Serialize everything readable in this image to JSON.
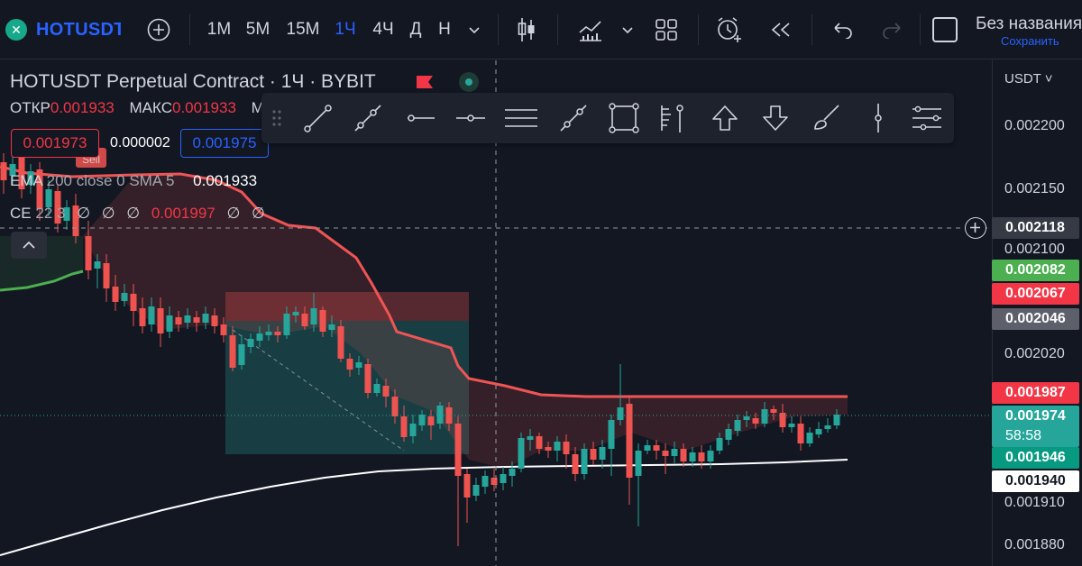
{
  "toolbar": {
    "symbol": "HOTUSDT",
    "intervals": [
      "1M",
      "5M",
      "15M",
      "1Ч",
      "4Ч",
      "Д",
      "Н"
    ],
    "active_interval": "1Ч",
    "layout_title": "Без названия",
    "save_label": "Сохранить"
  },
  "legend": {
    "title": "HOTUSDT Perpetual Contract · 1Ч · BYBIT",
    "open_label": "ОТКР",
    "open_value": "0.001933",
    "high_label": "МАКС",
    "high_value": "0.001933",
    "high_more": "М",
    "sell_price": "0.001973",
    "spread": "0.000002",
    "buy_price": "0.001975",
    "sell_tag": "Sell"
  },
  "indicators": {
    "ema": {
      "name": "EMA",
      "params": "200 close 0 SMA 5",
      "value": "0.001933"
    },
    "ce": {
      "name": "CE",
      "params": "22 3",
      "nil_values": [
        "∅",
        "∅",
        "∅"
      ],
      "value": "0.001997",
      "trailing_nil": [
        "∅",
        "∅"
      ]
    }
  },
  "price_scale": {
    "currency": "USDT",
    "ticks": [
      "0.002200",
      "0.002150",
      "0.002100",
      "0.002020",
      "0.001910",
      "0.001880"
    ],
    "crosshair_price": "0.002118",
    "badges": [
      {
        "label": "0.002082",
        "bg": "#4caf50",
        "fg": "#ffffff"
      },
      {
        "label": "0.002067",
        "bg": "#f23645",
        "fg": "#ffffff"
      },
      {
        "label": "0.002046",
        "bg": "#5d606b",
        "fg": "#ffffff"
      },
      {
        "label": "0.001987",
        "bg": "#f23645",
        "fg": "#ffffff"
      },
      {
        "label": "0.001974",
        "bg": "#26a69a",
        "fg": "#ffffff"
      },
      {
        "label": "58:58",
        "bg": "#26a69a",
        "fg": "#ffffff"
      },
      {
        "label": "0.001946",
        "bg": "#089981",
        "fg": "#ffffff"
      },
      {
        "label": "0.001940",
        "bg": "#ffffff",
        "fg": "#131722"
      }
    ]
  },
  "colors": {
    "up": "#26a69a",
    "down": "#ef5350",
    "ce_line": "#f05454",
    "ema_line": "#ffffff",
    "accent": "#2962ff"
  },
  "icons": {
    "topbar": [
      "add-symbol-icon",
      "chart-type-icon",
      "indicators-icon",
      "templates-icon",
      "alert-icon",
      "replay-icon",
      "undo-icon",
      "redo-icon",
      "layout-icon"
    ],
    "drawing": [
      "trend-line-icon",
      "ray-icon",
      "horizontal-ray-icon",
      "horizontal-line-icon",
      "parallel-channel-icon",
      "extended-line-icon",
      "rectangle-icon",
      "fib-icon",
      "vertical-ray-icon",
      "arrow-up-icon",
      "arrow-down-icon",
      "brush-icon",
      "vertical-line-icon",
      "settings-list-icon"
    ]
  }
}
